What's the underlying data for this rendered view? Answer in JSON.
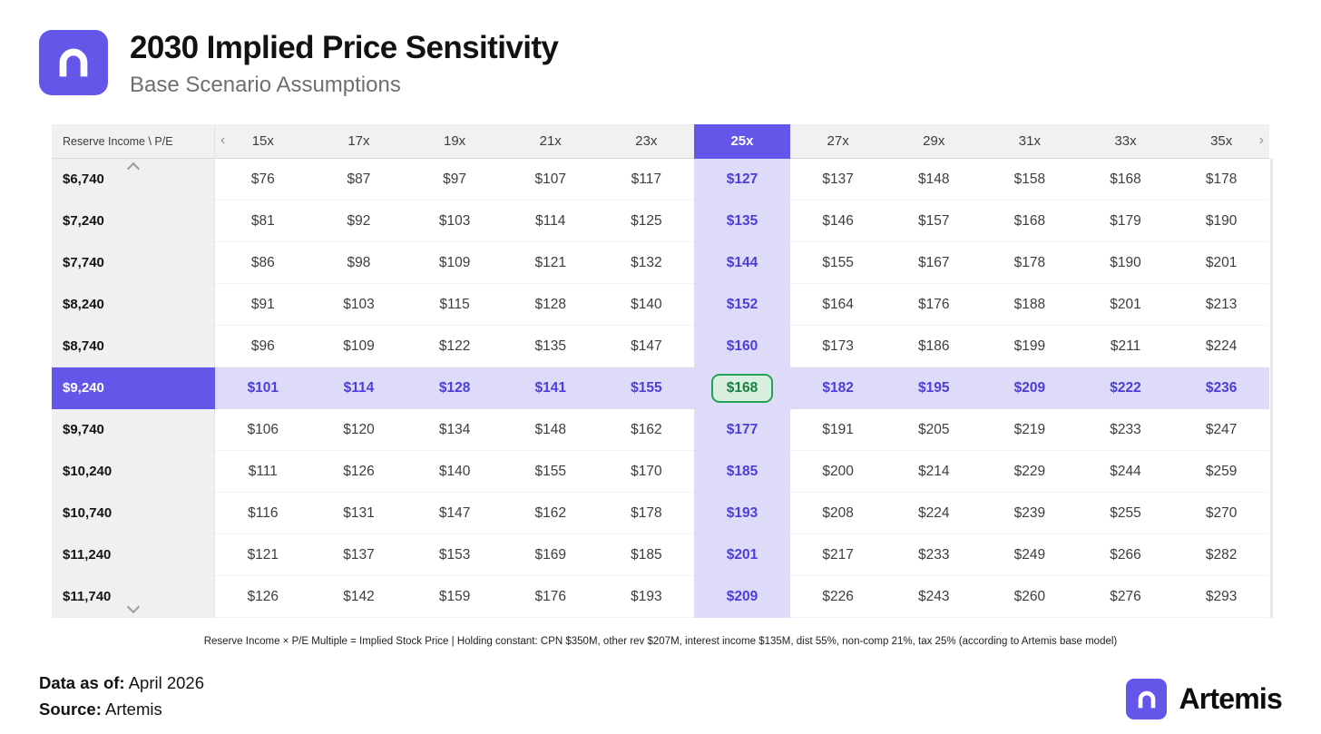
{
  "header": {
    "title": "2030 Implied Price Sensitivity",
    "subtitle": "Base Scenario Assumptions"
  },
  "table": {
    "corner_label": "Reserve Income \\ P/E"
  },
  "chart_data": {
    "type": "heatmap",
    "title": "2030 Implied Price Sensitivity",
    "subtitle": "Base Scenario Assumptions",
    "x_label": "P/E Multiple",
    "y_label": "Reserve Income",
    "value_unit": "USD implied stock price",
    "columns": [
      "15x",
      "17x",
      "19x",
      "21x",
      "23x",
      "25x",
      "27x",
      "29x",
      "31x",
      "33x",
      "35x"
    ],
    "rows": [
      "$6,740",
      "$7,240",
      "$7,740",
      "$8,240",
      "$8,740",
      "$9,240",
      "$9,740",
      "$10,240",
      "$10,740",
      "$11,240",
      "$11,740"
    ],
    "values": [
      [
        76,
        87,
        97,
        107,
        117,
        127,
        137,
        148,
        158,
        168,
        178
      ],
      [
        81,
        92,
        103,
        114,
        125,
        135,
        146,
        157,
        168,
        179,
        190
      ],
      [
        86,
        98,
        109,
        121,
        132,
        144,
        155,
        167,
        178,
        190,
        201
      ],
      [
        91,
        103,
        115,
        128,
        140,
        152,
        164,
        176,
        188,
        201,
        213
      ],
      [
        96,
        109,
        122,
        135,
        147,
        160,
        173,
        186,
        199,
        211,
        224
      ],
      [
        101,
        114,
        128,
        141,
        155,
        168,
        182,
        195,
        209,
        222,
        236
      ],
      [
        106,
        120,
        134,
        148,
        162,
        177,
        191,
        205,
        219,
        233,
        247
      ],
      [
        111,
        126,
        140,
        155,
        170,
        185,
        200,
        214,
        229,
        244,
        259
      ],
      [
        116,
        131,
        147,
        162,
        178,
        193,
        208,
        224,
        239,
        255,
        270
      ],
      [
        121,
        137,
        153,
        169,
        185,
        201,
        217,
        233,
        249,
        266,
        282
      ],
      [
        126,
        142,
        159,
        176,
        193,
        209,
        226,
        243,
        260,
        276,
        293
      ]
    ],
    "highlight_col_index": 5,
    "highlight_row_index": 5,
    "highlighted_cell": {
      "row": "$9,240",
      "column": "25x",
      "value": 168
    },
    "legend_position": "none",
    "grid": false
  },
  "footnote": "Reserve Income × P/E Multiple = Implied Stock Price | Holding constant: CPN $350M, other rev $207M, interest income $135M, dist 55%, non-comp 21%, tax 25% (according to Artemis base model)",
  "meta": {
    "data_as_of_label": "Data as of:",
    "data_as_of": "April 2026",
    "source_label": "Source:",
    "source": "Artemis"
  },
  "brand": {
    "name": "Artemis"
  },
  "icons": {
    "scroll_left": "‹",
    "scroll_right": "›"
  },
  "colors": {
    "accent": "#6456E8",
    "accent_light": "#DEDBF9",
    "accent_text": "#4A3FD8",
    "green_bg": "#D9EFDF",
    "green_border": "#23A257",
    "header_bg": "#F1F1F2"
  }
}
